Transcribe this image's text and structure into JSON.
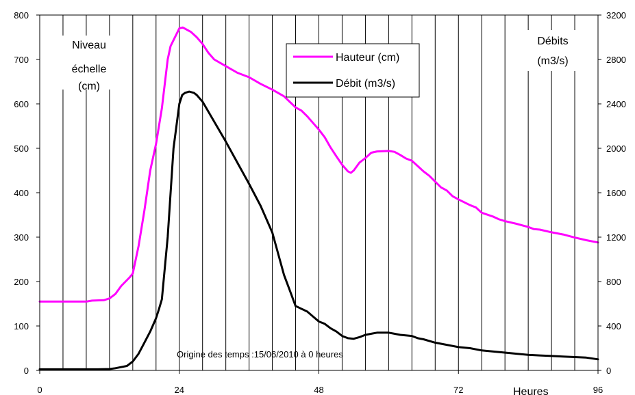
{
  "chart_data": {
    "type": "line",
    "x_label": "Heures",
    "y_left_label": [
      "Niveau",
      "échelle",
      "(cm)"
    ],
    "y_right_label": [
      "Débits",
      "(m3/s)"
    ],
    "note": "Origine des temps :15/06/2010 à 0 heures",
    "x_ticks": [
      "0",
      "24",
      "48",
      "72",
      "96"
    ],
    "y_left_ticks": [
      "0",
      "100",
      "200",
      "300",
      "400",
      "500",
      "600",
      "700",
      "800"
    ],
    "y_right_ticks": [
      "0",
      "400",
      "800",
      "1200",
      "1600",
      "2000",
      "2400",
      "2800",
      "3200"
    ],
    "xlim": [
      0,
      96
    ],
    "ylim_left": [
      0,
      800
    ],
    "ylim_right": [
      0,
      3200
    ],
    "grid": {
      "vertical_every": 4,
      "horizontal": false
    },
    "legend": {
      "placement": "top-center"
    },
    "series": [
      {
        "name": "Hauteur (cm)",
        "axis": "left",
        "color": "#ff00ff",
        "points": [
          [
            0,
            155
          ],
          [
            4,
            155
          ],
          [
            8,
            155
          ],
          [
            9,
            157
          ],
          [
            11,
            158
          ],
          [
            12,
            162
          ],
          [
            13,
            172
          ],
          [
            14,
            190
          ],
          [
            15.5,
            210
          ],
          [
            16,
            218
          ],
          [
            17,
            280
          ],
          [
            18,
            360
          ],
          [
            19,
            450
          ],
          [
            20,
            510
          ],
          [
            21,
            590
          ],
          [
            22,
            700
          ],
          [
            22.5,
            730
          ],
          [
            24,
            770
          ],
          [
            24.6,
            772
          ],
          [
            26,
            762
          ],
          [
            27,
            750
          ],
          [
            28,
            735
          ],
          [
            29,
            715
          ],
          [
            30,
            700
          ],
          [
            32,
            685
          ],
          [
            34,
            670
          ],
          [
            36,
            660
          ],
          [
            38,
            645
          ],
          [
            40,
            632
          ],
          [
            42,
            617
          ],
          [
            44,
            592
          ],
          [
            45,
            585
          ],
          [
            46,
            572
          ],
          [
            48,
            542
          ],
          [
            49,
            525
          ],
          [
            50,
            502
          ],
          [
            51,
            482
          ],
          [
            52,
            463
          ],
          [
            53,
            448
          ],
          [
            53.5,
            445
          ],
          [
            54,
            450
          ],
          [
            55,
            468
          ],
          [
            56,
            478
          ],
          [
            57,
            490
          ],
          [
            58,
            493
          ],
          [
            60,
            494
          ],
          [
            61,
            492
          ],
          [
            62,
            485
          ],
          [
            63,
            477
          ],
          [
            64,
            472
          ],
          [
            65,
            460
          ],
          [
            66,
            448
          ],
          [
            67,
            438
          ],
          [
            68,
            425
          ],
          [
            69,
            412
          ],
          [
            70,
            405
          ],
          [
            71,
            392
          ],
          [
            72,
            385
          ],
          [
            74,
            372
          ],
          [
            75,
            367
          ],
          [
            76,
            355
          ],
          [
            78,
            346
          ],
          [
            79,
            340
          ],
          [
            80,
            336
          ],
          [
            82,
            330
          ],
          [
            84,
            323
          ],
          [
            85,
            318
          ],
          [
            86,
            317
          ],
          [
            88,
            311
          ],
          [
            90,
            306
          ],
          [
            92,
            299
          ],
          [
            94,
            293
          ],
          [
            96,
            288
          ]
        ]
      },
      {
        "name": "Débit (m3/s)",
        "axis": "right",
        "color": "#000000",
        "points": [
          [
            0,
            10
          ],
          [
            4,
            10
          ],
          [
            8,
            10
          ],
          [
            10,
            10
          ],
          [
            12,
            12
          ],
          [
            13,
            20
          ],
          [
            15,
            40
          ],
          [
            16,
            80
          ],
          [
            17,
            150
          ],
          [
            18,
            250
          ],
          [
            19,
            350
          ],
          [
            20,
            470
          ],
          [
            20.5,
            550
          ],
          [
            21,
            640
          ],
          [
            22,
            1200
          ],
          [
            23,
            2000
          ],
          [
            24,
            2400
          ],
          [
            24.5,
            2480
          ],
          [
            25,
            2500
          ],
          [
            25.7,
            2510
          ],
          [
            26.5,
            2500
          ],
          [
            27,
            2480
          ],
          [
            28,
            2420
          ],
          [
            30,
            2240
          ],
          [
            32,
            2060
          ],
          [
            34,
            1870
          ],
          [
            36,
            1680
          ],
          [
            38,
            1480
          ],
          [
            40,
            1240
          ],
          [
            42,
            860
          ],
          [
            43,
            720
          ],
          [
            44,
            580
          ],
          [
            46,
            530
          ],
          [
            48,
            440
          ],
          [
            49,
            420
          ],
          [
            50,
            380
          ],
          [
            51,
            350
          ],
          [
            52,
            310
          ],
          [
            53,
            290
          ],
          [
            54,
            285
          ],
          [
            55,
            300
          ],
          [
            56,
            320
          ],
          [
            57,
            330
          ],
          [
            58,
            340
          ],
          [
            60,
            340
          ],
          [
            61,
            330
          ],
          [
            62,
            320
          ],
          [
            64,
            310
          ],
          [
            65,
            290
          ],
          [
            66,
            280
          ],
          [
            68,
            250
          ],
          [
            70,
            230
          ],
          [
            72,
            210
          ],
          [
            74,
            200
          ],
          [
            76,
            180
          ],
          [
            78,
            170
          ],
          [
            80,
            160
          ],
          [
            82,
            150
          ],
          [
            84,
            140
          ],
          [
            86,
            135
          ],
          [
            88,
            130
          ],
          [
            90,
            125
          ],
          [
            92,
            120
          ],
          [
            94,
            115
          ],
          [
            96,
            100
          ]
        ]
      }
    ]
  }
}
